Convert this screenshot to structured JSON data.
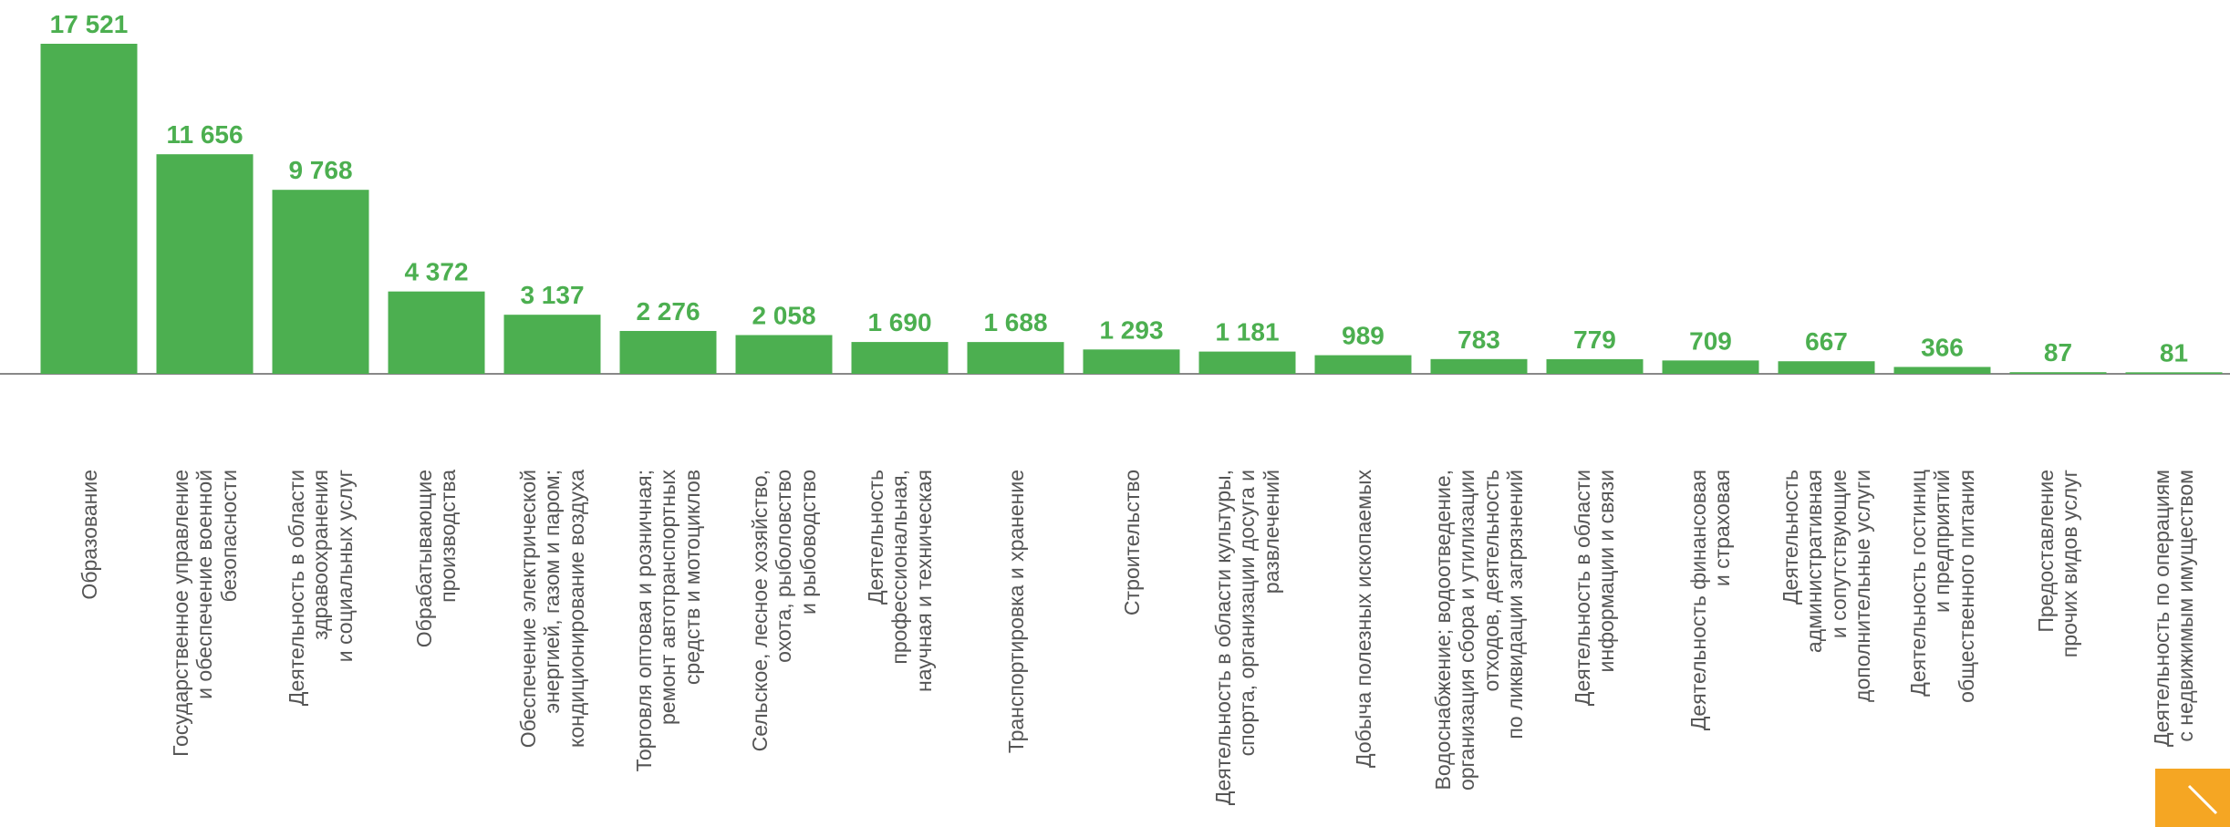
{
  "chart_data": {
    "type": "bar",
    "color": "#4caf50",
    "categories": [
      "Образование",
      "Государственное управление\nи обеспечение военной\nбезопасности",
      "Деятельность в области\nздравоохранения\nи социальных услуг",
      "Обрабатывающие\nпроизводства",
      "Обеспечение электрической\nэнергией, газом и паром;\nкондиционирование воздуха",
      "Торговля оптовая и розничная;\nремонт автотранспортных\nсредств и мотоциклов",
      "Сельское, лесное хозяйство,\nохота, рыболовство\nи рыбоводство",
      "Деятельность\nпрофессиональная,\nнаучная и техническая",
      "Транспортировка и хранение",
      "Строительство",
      "Деятельность в области культуры,\nспорта, организации досуга и\nразвлечений",
      "Добыча полезных ископаемых",
      "Водоснабжение; водоотведение,\nорганизация сбора и утилизации\nотходов, деятельность\nпо ликвидации загрязнений",
      "Деятельность в области\nинформации и связи",
      "Деятельность финансовая\nи страховая",
      "Деятельность\nадминистративная\nи сопутствующие\nдополнительные услуги",
      "Деятельность гостиниц\nи предприятий\nобщественного питания",
      "Предоставление\nпрочих видов услуг",
      "Деятельность по операциям\nс недвижимым имуществом"
    ],
    "values": [
      17521,
      11656,
      9768,
      4372,
      3137,
      2276,
      2058,
      1690,
      1688,
      1293,
      1181,
      989,
      783,
      779,
      709,
      667,
      366,
      87,
      81
    ],
    "value_labels": [
      "17 521",
      "11 656",
      "9 768",
      "4 372",
      "3 137",
      "2 276",
      "2 058",
      "1 690",
      "1 688",
      "1 293",
      "1 181",
      "989",
      "783",
      "779",
      "709",
      "667",
      "366",
      "87",
      "81"
    ]
  }
}
